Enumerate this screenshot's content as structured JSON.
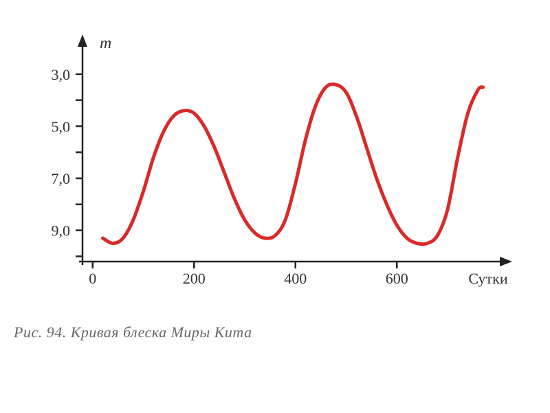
{
  "chart": {
    "type": "line",
    "y_axis_label": "m",
    "x_axis_label": "Сутки",
    "y_ticks": [
      3.0,
      5.0,
      7.0,
      9.0
    ],
    "y_tick_labels": [
      "3,0",
      "5,0",
      "7,0",
      "9,0"
    ],
    "y_minor_ticks": [
      4.0,
      6.0,
      8.0,
      10.0
    ],
    "x_ticks": [
      0,
      200,
      400,
      600
    ],
    "x_tick_labels": [
      "0",
      "200",
      "400",
      "600"
    ],
    "ylim": [
      10.2,
      2.0
    ],
    "xlim": [
      -20,
      780
    ],
    "line_color": "#d92a2a",
    "line_width": 5,
    "axis_color": "#222222",
    "axis_width": 2.5,
    "background_color": "#ffffff",
    "tick_length": 10,
    "data_points": [
      [
        20,
        9.3
      ],
      [
        40,
        9.5
      ],
      [
        60,
        9.3
      ],
      [
        80,
        8.6
      ],
      [
        100,
        7.5
      ],
      [
        120,
        6.2
      ],
      [
        140,
        5.2
      ],
      [
        160,
        4.6
      ],
      [
        180,
        4.4
      ],
      [
        200,
        4.5
      ],
      [
        220,
        5.0
      ],
      [
        240,
        5.8
      ],
      [
        260,
        6.8
      ],
      [
        280,
        7.8
      ],
      [
        300,
        8.6
      ],
      [
        320,
        9.1
      ],
      [
        340,
        9.3
      ],
      [
        360,
        9.2
      ],
      [
        380,
        8.6
      ],
      [
        400,
        7.2
      ],
      [
        420,
        5.5
      ],
      [
        440,
        4.2
      ],
      [
        460,
        3.5
      ],
      [
        480,
        3.4
      ],
      [
        500,
        3.7
      ],
      [
        520,
        4.6
      ],
      [
        540,
        5.8
      ],
      [
        560,
        7.0
      ],
      [
        580,
        8.0
      ],
      [
        600,
        8.8
      ],
      [
        620,
        9.3
      ],
      [
        640,
        9.5
      ],
      [
        660,
        9.5
      ],
      [
        680,
        9.2
      ],
      [
        700,
        8.2
      ],
      [
        720,
        6.2
      ],
      [
        740,
        4.5
      ],
      [
        760,
        3.6
      ],
      [
        770,
        3.5
      ]
    ]
  },
  "caption": "Рис. 94. Кривая блеска Миры Кита"
}
